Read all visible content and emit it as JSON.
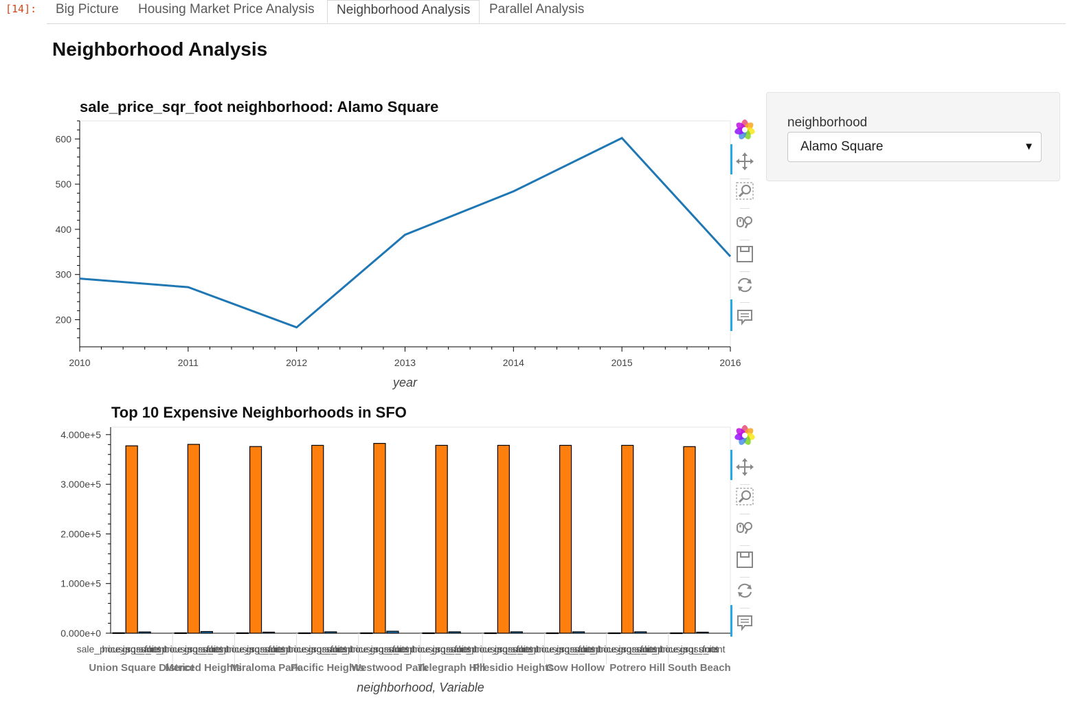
{
  "cell": {
    "prompt": "[14]:"
  },
  "tabs": [
    {
      "label": "Big Picture",
      "active": false
    },
    {
      "label": "Housing Market Price Analysis",
      "active": false
    },
    {
      "label": "Neighborhood Analysis",
      "active": true
    },
    {
      "label": "Parallel Analysis",
      "active": false
    }
  ],
  "page": {
    "title": "Neighborhood Analysis"
  },
  "widget": {
    "label": "neighborhood",
    "selected": "Alamo Square"
  },
  "toolbar": {
    "icons": [
      "bokeh-logo-icon",
      "pan-icon",
      "box-zoom-icon",
      "wheel-zoom-icon",
      "save-icon",
      "reset-icon",
      "hover-icon"
    ]
  },
  "colors": {
    "line": "#1f77b4",
    "bar_orange": "#ff7f0e",
    "bar_green": "#2ca02c",
    "bar_blue": "#1f77b4",
    "accent": "#26aae1"
  },
  "chart_data": [
    {
      "type": "line",
      "title": "sale_price_sqr_foot  neighborhood: Alamo Square",
      "xlabel": "year",
      "ylabel": "",
      "x": [
        2010,
        2011,
        2012,
        2013,
        2014,
        2015,
        2016
      ],
      "y": [
        291,
        272,
        183,
        388,
        484,
        602,
        340
      ],
      "xlim": [
        2010,
        2016
      ],
      "ylim": [
        140,
        640
      ],
      "xticks": [
        "2010",
        "2011",
        "2012",
        "2013",
        "2014",
        "2015",
        "2016"
      ],
      "yticks": [
        "200",
        "300",
        "400",
        "500",
        "600"
      ]
    },
    {
      "type": "bar",
      "title": "Top 10 Expensive Neighborhoods in SFO",
      "xlabel": "neighborhood, Variable",
      "ylabel": "",
      "ylim": [
        0,
        415000
      ],
      "yticks": [
        "0.000e+0",
        "1.000e+5",
        "2.000e+5",
        "3.000e+5",
        "4.000e+5"
      ],
      "variables": [
        "sale_price_sqr_foot",
        "housing_units",
        "gross_rent"
      ],
      "categories": [
        "Union Square District",
        "Merced Heights",
        "Miraloma Park",
        "Pacific Heights",
        "Westwood Park",
        "Telegraph Hill",
        "Presidio Heights",
        "Cow Hollow",
        "Potrero Hill",
        "South Beach"
      ],
      "series": [
        {
          "values": [
            903,
            788,
            779,
            689,
            687,
            676,
            675,
            665,
            662,
            650
          ]
        },
        {
          "values": [
            377427,
            380348,
            375967,
            378401,
            382295,
            378401,
            378401,
            378401,
            378401,
            375805
          ]
        },
        {
          "values": [
            2555,
            3415,
            2155,
            2817,
            3959,
            2817,
            2817,
            2817,
            2817,
            2099
          ]
        }
      ]
    }
  ]
}
